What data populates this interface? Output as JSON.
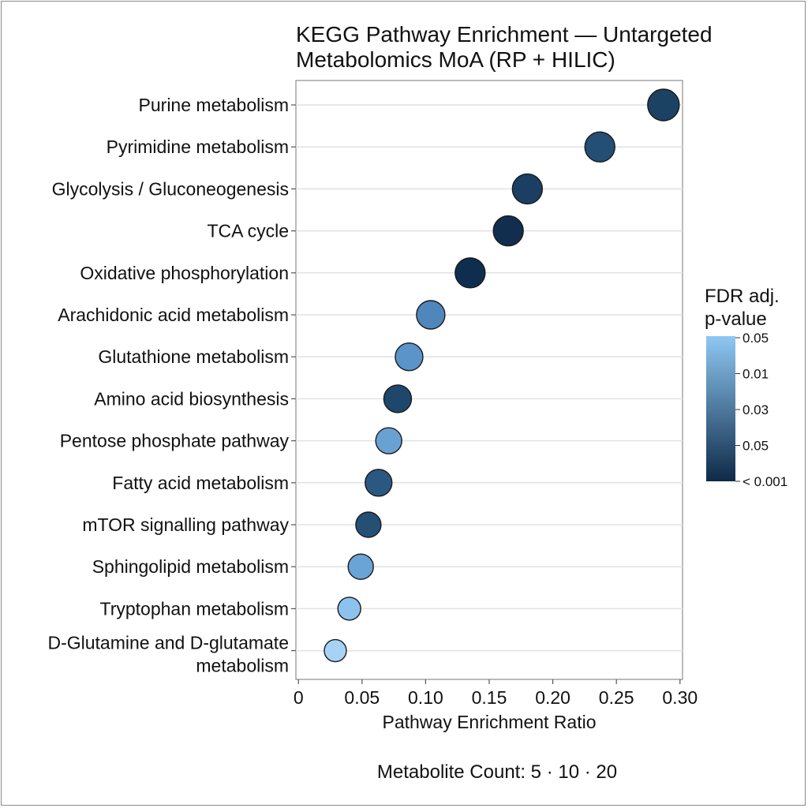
{
  "chart_data": {
    "type": "scatter",
    "title_lines": [
      "KEGG Pathway Enrichment — Untargeted",
      "Metabolomics MoA (RP + HILIC)"
    ],
    "xlabel": "Pathway Enrichment Ratio",
    "xlim": [
      -0.002,
      0.302
    ],
    "x_ticks": [
      0,
      0.05,
      0.1,
      0.15,
      0.2,
      0.25,
      0.3
    ],
    "x_tick_labels": [
      "0",
      "0.05",
      "0.10",
      "0.15",
      "0.20",
      "0.25",
      "0.30"
    ],
    "grid": true,
    "categories": [
      [
        "Purine metabolism"
      ],
      [
        "Pyrimidine metabolism"
      ],
      [
        "Glycolysis / Gluconeogenesis"
      ],
      [
        "TCA cycle"
      ],
      [
        "Oxidative phosphorylation"
      ],
      [
        "Arachidonic acid metabolism"
      ],
      [
        "Glutathione metabolism"
      ],
      [
        "Amino acid biosynthesis"
      ],
      [
        "Pentose phosphate pathway"
      ],
      [
        "Fatty acid metabolism"
      ],
      [
        "mTOR signalling pathway"
      ],
      [
        "Sphingolipid metabolism"
      ],
      [
        "Tryptophan metabolism"
      ],
      [
        "D-Glutamine and D-glutamate",
        "metabolism"
      ]
    ],
    "points": [
      {
        "x": 0.287,
        "count": 20,
        "color": "#1b4263"
      },
      {
        "x": 0.237,
        "count": 18,
        "color": "#244e73"
      },
      {
        "x": 0.18,
        "count": 18,
        "color": "#1a3f62"
      },
      {
        "x": 0.165,
        "count": 18,
        "color": "#112e4f"
      },
      {
        "x": 0.135,
        "count": 18,
        "color": "#0f2d4f"
      },
      {
        "x": 0.104,
        "count": 16,
        "color": "#4f87bc"
      },
      {
        "x": 0.087,
        "count": 15,
        "color": "#5b94c8"
      },
      {
        "x": 0.078,
        "count": 15,
        "color": "#1f476c"
      },
      {
        "x": 0.071,
        "count": 13,
        "color": "#6aa1d3"
      },
      {
        "x": 0.063,
        "count": 14,
        "color": "#2b5880"
      },
      {
        "x": 0.055,
        "count": 12,
        "color": "#264f76"
      },
      {
        "x": 0.049,
        "count": 12,
        "color": "#6aa4d6"
      },
      {
        "x": 0.04,
        "count": 9,
        "color": "#8cc3ee"
      },
      {
        "x": 0.029,
        "count": 8,
        "color": "#a6d3f5"
      }
    ],
    "legend": {
      "title_lines": [
        "FDR adj.",
        "p-value"
      ],
      "placement": "right",
      "tick_labels": [
        "0.05",
        "0.01",
        "0.03",
        "0.05",
        "< 0.001"
      ],
      "gradient_top": "#8ec8f2",
      "gradient_bottom": "#0e2a48"
    },
    "size_note": "Metabolite Count: 5 · 10 · 20"
  }
}
